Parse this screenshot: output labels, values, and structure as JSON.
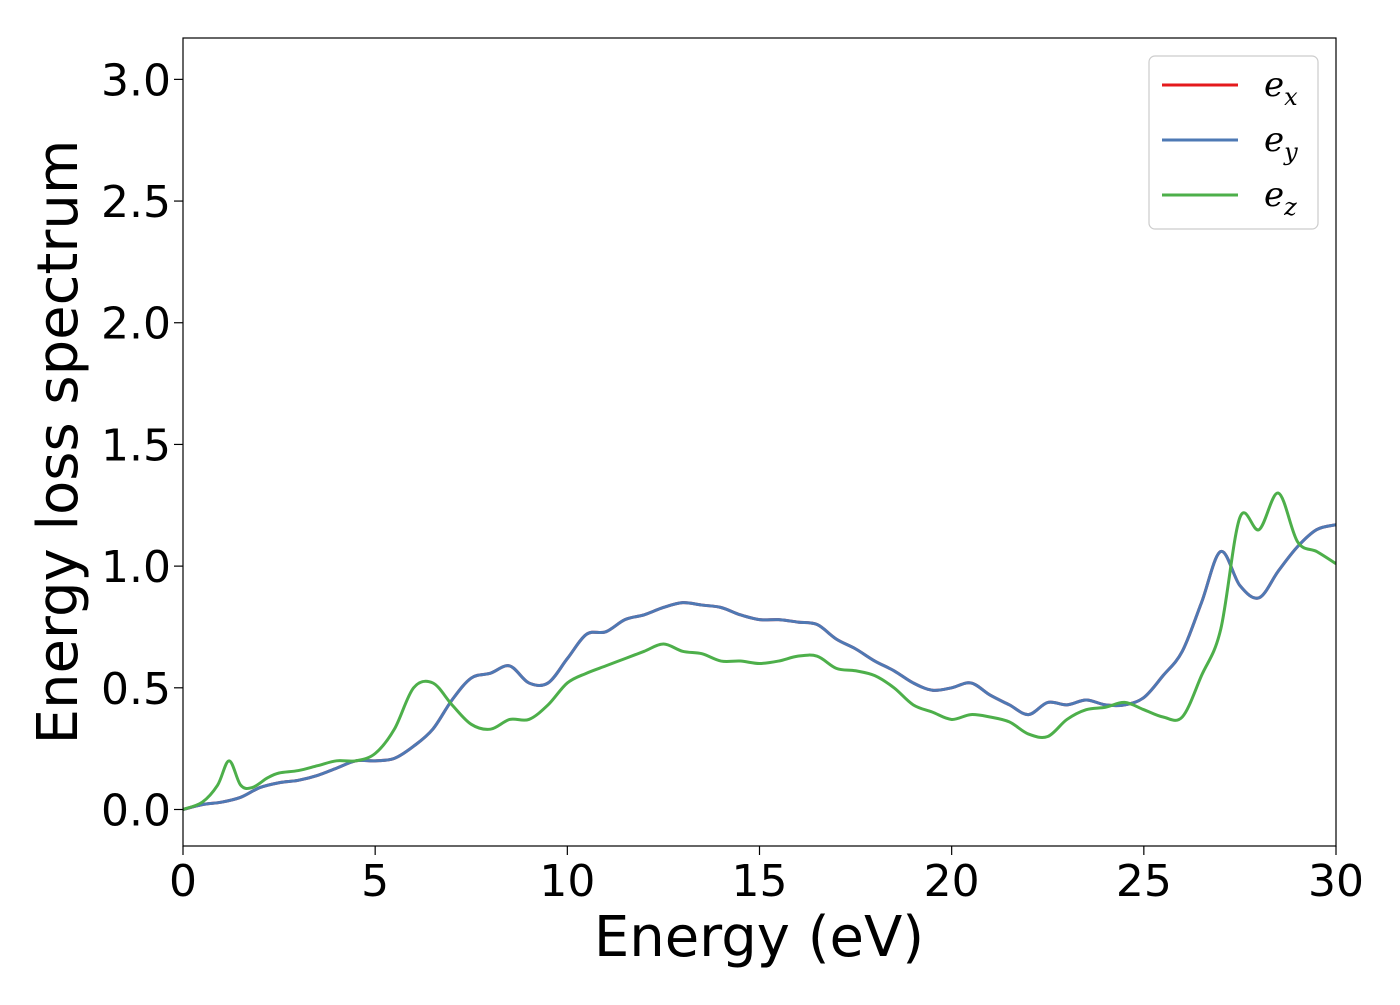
{
  "chart_data": {
    "type": "line",
    "xlabel": "Energy (eV)",
    "ylabel": "Energy loss spectrum",
    "xlim": [
      0,
      30
    ],
    "ylim": [
      -0.15,
      3.17
    ],
    "x_ticks": [
      0,
      5,
      10,
      15,
      20,
      25,
      30
    ],
    "x_tick_labels": [
      "0",
      "5",
      "10",
      "15",
      "20",
      "25",
      "30"
    ],
    "y_ticks": [
      0.0,
      0.5,
      1.0,
      1.5,
      2.0,
      2.5,
      3.0
    ],
    "y_tick_labels": [
      "0.0",
      "0.5",
      "1.0",
      "1.5",
      "2.0",
      "2.5",
      "3.0"
    ],
    "grid": false,
    "legend_position": "top-right",
    "series": [
      {
        "name": "e_x",
        "legend_main": "e",
        "legend_sub": "x",
        "color": "#e41a1c",
        "x": [
          0,
          0.5,
          1.0,
          1.5,
          2.0,
          2.5,
          3.0,
          3.5,
          4.0,
          4.5,
          5.0,
          5.5,
          6.0,
          6.5,
          7.0,
          7.5,
          8.0,
          8.5,
          9.0,
          9.5,
          10.0,
          10.5,
          11.0,
          11.5,
          12.0,
          12.5,
          13.0,
          13.5,
          14.0,
          14.5,
          15.0,
          15.5,
          16.0,
          16.5,
          17.0,
          17.5,
          18.0,
          18.5,
          19.0,
          19.5,
          20.0,
          20.5,
          21.0,
          21.5,
          22.0,
          22.5,
          23.0,
          23.5,
          24.0,
          24.5,
          25.0,
          25.5,
          26.0,
          26.5,
          27.0,
          27.5,
          28.0,
          28.5,
          29.0,
          29.5,
          30.0
        ],
        "y": [
          0.0,
          0.02,
          0.03,
          0.05,
          0.09,
          0.11,
          0.12,
          0.14,
          0.17,
          0.2,
          0.2,
          0.21,
          0.26,
          0.33,
          0.45,
          0.54,
          0.56,
          0.59,
          0.52,
          0.52,
          0.62,
          0.72,
          0.73,
          0.78,
          0.8,
          0.83,
          0.85,
          0.84,
          0.83,
          0.8,
          0.78,
          0.78,
          0.77,
          0.76,
          0.7,
          0.66,
          0.61,
          0.57,
          0.52,
          0.49,
          0.5,
          0.52,
          0.47,
          0.43,
          0.39,
          0.44,
          0.43,
          0.45,
          0.43,
          0.43,
          0.46,
          0.55,
          0.65,
          0.85,
          1.06,
          0.92,
          0.87,
          0.98,
          1.08,
          1.15,
          1.17
        ]
      },
      {
        "name": "e_y",
        "legend_main": "e",
        "legend_sub": "y",
        "color": "#4e79b4",
        "x": [
          0,
          0.5,
          1.0,
          1.5,
          2.0,
          2.5,
          3.0,
          3.5,
          4.0,
          4.5,
          5.0,
          5.5,
          6.0,
          6.5,
          7.0,
          7.5,
          8.0,
          8.5,
          9.0,
          9.5,
          10.0,
          10.5,
          11.0,
          11.5,
          12.0,
          12.5,
          13.0,
          13.5,
          14.0,
          14.5,
          15.0,
          15.5,
          16.0,
          16.5,
          17.0,
          17.5,
          18.0,
          18.5,
          19.0,
          19.5,
          20.0,
          20.5,
          21.0,
          21.5,
          22.0,
          22.5,
          23.0,
          23.5,
          24.0,
          24.5,
          25.0,
          25.5,
          26.0,
          26.5,
          27.0,
          27.5,
          28.0,
          28.5,
          29.0,
          29.5,
          30.0
        ],
        "y": [
          0.0,
          0.02,
          0.03,
          0.05,
          0.09,
          0.11,
          0.12,
          0.14,
          0.17,
          0.2,
          0.2,
          0.21,
          0.26,
          0.33,
          0.45,
          0.54,
          0.56,
          0.59,
          0.52,
          0.52,
          0.62,
          0.72,
          0.73,
          0.78,
          0.8,
          0.83,
          0.85,
          0.84,
          0.83,
          0.8,
          0.78,
          0.78,
          0.77,
          0.76,
          0.7,
          0.66,
          0.61,
          0.57,
          0.52,
          0.49,
          0.5,
          0.52,
          0.47,
          0.43,
          0.39,
          0.44,
          0.43,
          0.45,
          0.43,
          0.43,
          0.46,
          0.55,
          0.65,
          0.85,
          1.06,
          0.92,
          0.87,
          0.98,
          1.08,
          1.15,
          1.17
        ]
      },
      {
        "name": "e_z",
        "legend_main": "e",
        "legend_sub": "z",
        "color": "#4daf4a",
        "x": [
          0,
          0.5,
          0.9,
          1.2,
          1.5,
          1.8,
          2.2,
          2.5,
          3.0,
          3.5,
          4.0,
          4.5,
          5.0,
          5.5,
          6.0,
          6.5,
          7.0,
          7.5,
          8.0,
          8.5,
          9.0,
          9.5,
          10.0,
          10.5,
          11.0,
          11.5,
          12.0,
          12.5,
          13.0,
          13.5,
          14.0,
          14.5,
          15.0,
          15.5,
          16.0,
          16.5,
          17.0,
          17.5,
          18.0,
          18.5,
          19.0,
          19.5,
          20.0,
          20.5,
          21.0,
          21.5,
          22.0,
          22.5,
          23.0,
          23.5,
          24.0,
          24.5,
          25.0,
          25.5,
          26.0,
          26.5,
          27.0,
          27.5,
          28.0,
          28.5,
          29.0,
          29.5,
          30.0
        ],
        "y": [
          0.0,
          0.03,
          0.1,
          0.2,
          0.1,
          0.09,
          0.13,
          0.15,
          0.16,
          0.18,
          0.2,
          0.2,
          0.23,
          0.33,
          0.5,
          0.52,
          0.43,
          0.35,
          0.33,
          0.37,
          0.37,
          0.43,
          0.52,
          0.56,
          0.59,
          0.62,
          0.65,
          0.68,
          0.65,
          0.64,
          0.61,
          0.61,
          0.6,
          0.61,
          0.63,
          0.63,
          0.58,
          0.57,
          0.55,
          0.5,
          0.43,
          0.4,
          0.37,
          0.39,
          0.38,
          0.36,
          0.31,
          0.3,
          0.37,
          0.41,
          0.42,
          0.44,
          0.41,
          0.38,
          0.38,
          0.55,
          0.74,
          1.2,
          1.15,
          1.3,
          1.1,
          1.06,
          1.01
        ]
      }
    ]
  }
}
